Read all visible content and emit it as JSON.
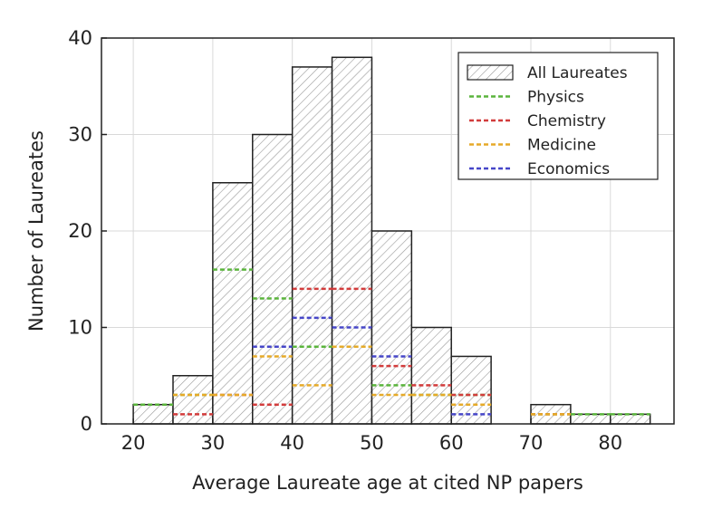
{
  "chart_data": {
    "type": "bar",
    "title": "",
    "xlabel": "Average Laureate age at cited NP papers",
    "ylabel": "Number of Laureates",
    "xlim": [
      16,
      88
    ],
    "ylim": [
      0,
      40
    ],
    "xticks": [
      20,
      30,
      40,
      50,
      60,
      70,
      80
    ],
    "yticks": [
      0,
      10,
      20,
      30,
      40
    ],
    "grid": true,
    "legend_position": "top-right",
    "bin_width": 5,
    "bin_starts": [
      20,
      25,
      30,
      35,
      40,
      45,
      50,
      55,
      60,
      65,
      70,
      75,
      80
    ],
    "series": [
      {
        "name": "All Laureates",
        "style": "hatched-bar",
        "color": "#555555",
        "values": [
          2,
          5,
          25,
          30,
          37,
          38,
          20,
          10,
          7,
          0,
          2,
          1,
          1
        ]
      },
      {
        "name": "Physics",
        "style": "dashed-step",
        "color": "#5ab43c",
        "values": [
          2,
          3,
          16,
          13,
          8,
          8,
          4,
          3,
          3,
          0,
          1,
          1,
          1
        ]
      },
      {
        "name": "Chemistry",
        "style": "dashed-step",
        "color": "#d23c3c",
        "values": [
          0,
          1,
          3,
          2,
          14,
          14,
          6,
          4,
          3,
          0,
          1,
          0,
          0
        ]
      },
      {
        "name": "Medicine",
        "style": "dashed-step",
        "color": "#e6aa28",
        "values": [
          0,
          3,
          3,
          7,
          4,
          8,
          3,
          3,
          2,
          0,
          1,
          0,
          0
        ]
      },
      {
        "name": "Economics",
        "style": "dashed-step",
        "color": "#4646c8",
        "values": [
          0,
          0,
          0,
          8,
          11,
          10,
          7,
          0,
          1,
          0,
          0,
          0,
          0
        ]
      }
    ]
  }
}
